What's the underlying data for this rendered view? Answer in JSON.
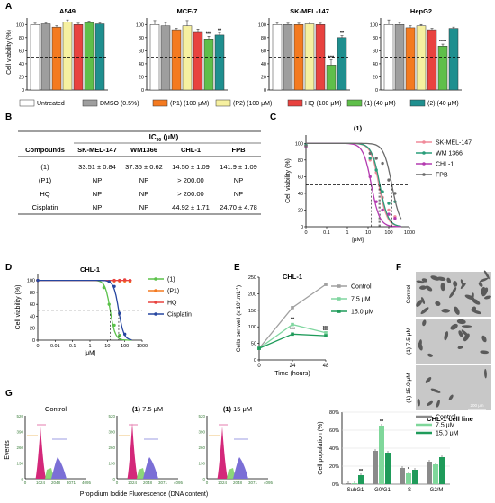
{
  "panel_letters": [
    "A",
    "B",
    "C",
    "D",
    "E",
    "F",
    "G"
  ],
  "colors": {
    "Untreated": "#ffffff",
    "DMSO": "#9e9e9e",
    "P1": "#f47a20",
    "P2": "#f6f0a0",
    "HQ": "#e8423f",
    "c1": "#5fbf4a",
    "c2": "#1f8f8f",
    "sk": "#f08a9a",
    "wm": "#2a9d7a",
    "chl": "#b43bb0",
    "fpb": "#6b6b6b",
    "d1": "#5bc24a",
    "dP1": "#f47a20",
    "dHQ": "#e8423f",
    "dCis": "#2746a0",
    "eControl": "#a0a0a0",
    "e75": "#80d6a0",
    "e15": "#1f9b5a",
    "g0": "#8a8a8a",
    "g1": "#7fd79a",
    "g2": "#1f9b5a"
  },
  "panelA": {
    "ylabel": "Cell viability (%)",
    "yticks": [
      "0",
      "20",
      "40",
      "60",
      "80",
      "100"
    ],
    "legend": [
      {
        "key": "Untreated",
        "label": "Untreated"
      },
      {
        "key": "DMSO",
        "label": "DMSO (0.5%)"
      },
      {
        "key": "P1",
        "label": "(P1) (100 μM)"
      },
      {
        "key": "P2",
        "label": "(P2) (100 μM)"
      },
      {
        "key": "HQ",
        "label": "HQ (100 μM)"
      },
      {
        "key": "c1",
        "label": "(1) (40 μM)"
      },
      {
        "key": "c2",
        "label": "(2) (40 μM)"
      }
    ],
    "chart_data": [
      {
        "type": "bar",
        "title": "A549",
        "categories": [
          "Untreated",
          "DMSO",
          "P1",
          "P2",
          "HQ",
          "1",
          "2"
        ],
        "values": [
          100,
          101,
          96,
          104,
          100,
          103,
          101
        ],
        "errors": [
          2,
          2,
          2,
          3,
          2,
          2,
          2
        ],
        "stars": [
          "",
          "",
          "",
          "",
          "",
          "",
          ""
        ],
        "ylim": [
          0,
          110
        ],
        "ref_line": 50
      },
      {
        "type": "bar",
        "title": "MCF-7",
        "categories": [
          "Untreated",
          "DMSO",
          "P1",
          "P2",
          "HQ",
          "1",
          "2"
        ],
        "values": [
          100,
          98,
          92,
          98,
          88,
          78,
          84
        ],
        "errors": [
          6,
          5,
          2,
          8,
          5,
          4,
          3
        ],
        "stars": [
          "",
          "",
          "",
          "",
          "",
          "***",
          "**"
        ],
        "ylim": [
          0,
          110
        ],
        "ref_line": 50
      },
      {
        "type": "bar",
        "title": "SK-MEL-147",
        "categories": [
          "Untreated",
          "DMSO",
          "P1",
          "P2",
          "HQ",
          "1",
          "2"
        ],
        "values": [
          100,
          100,
          100,
          101,
          100,
          38,
          80
        ],
        "errors": [
          3,
          2,
          2,
          3,
          2,
          8,
          3
        ],
        "stars": [
          "",
          "",
          "",
          "",
          "",
          "***",
          "**"
        ],
        "ylim": [
          0,
          110
        ],
        "ref_line": 50
      },
      {
        "type": "bar",
        "title": "HepG2",
        "categories": [
          "Untreated",
          "DMSO",
          "P1",
          "P2",
          "HQ",
          "1",
          "2"
        ],
        "values": [
          100,
          100,
          95,
          98,
          92,
          67,
          94
        ],
        "errors": [
          7,
          3,
          3,
          2,
          2,
          3,
          2
        ],
        "stars": [
          "",
          "",
          "",
          "",
          "",
          "****",
          ""
        ],
        "ylim": [
          0,
          110
        ],
        "ref_line": 50
      }
    ]
  },
  "panelB": {
    "header_group": "IC",
    "header_sub": "50",
    "header_unit": " (μM)",
    "columns": [
      "Compounds",
      "SK-MEL-147",
      "WM1366",
      "CHL-1",
      "FPB"
    ],
    "rows": [
      [
        "(1)",
        "33.51 ± 0.84",
        "37.35 ± 0.62",
        "14.50 ± 1.09",
        "141.9 ± 1.09"
      ],
      [
        "(P1)",
        "NP",
        "NP",
        "> 200.00",
        "NP"
      ],
      [
        "HQ",
        "NP",
        "NP",
        "> 200.00",
        "NP"
      ],
      [
        "Cisplatin",
        "NP",
        "NP",
        "44.92 ± 1.71",
        "24.70 ± 4.78"
      ]
    ]
  },
  "panelC": {
    "chart_data": {
      "type": "line",
      "title": "(1)",
      "xlabel": "[μM]",
      "ylabel": "Cell viability (%)",
      "xscale": "log",
      "xlim": [
        0.01,
        1000
      ],
      "ylim": [
        0,
        110
      ],
      "xticks": [
        "0",
        "0.1",
        "1",
        "10",
        "100",
        "1000"
      ],
      "yticks": [
        "0",
        "20",
        "40",
        "60",
        "80",
        "100"
      ],
      "ref_line": 50,
      "x": [
        0.01,
        12.5,
        25,
        50,
        100,
        200
      ],
      "series": [
        {
          "name": "SK-MEL-147",
          "key": "sk",
          "ic50": 33.51,
          "values": [
            97,
            80,
            65,
            35,
            20,
            12
          ]
        },
        {
          "name": "WM 1366",
          "key": "wm",
          "ic50": 37.35,
          "values": [
            98,
            82,
            68,
            42,
            28,
            30
          ]
        },
        {
          "name": "CHL-1",
          "key": "chl",
          "ic50": 14.5,
          "values": [
            96,
            60,
            30,
            20,
            15,
            10
          ]
        },
        {
          "name": "FPB",
          "key": "fpb",
          "ic50": 141.9,
          "values": [
            97,
            88,
            82,
            76,
            56,
            40
          ]
        }
      ]
    }
  },
  "panelD": {
    "chart_data": {
      "type": "line",
      "title": "CHL-1",
      "xlabel": "[μM]",
      "ylabel": "Cell viability (%)",
      "xscale": "log",
      "xlim": [
        0.001,
        1000
      ],
      "ylim": [
        0,
        110
      ],
      "xticks": [
        "0",
        "0.01",
        "0.1",
        "1",
        "10",
        "100",
        "1000"
      ],
      "yticks": [
        "0",
        "20",
        "40",
        "60",
        "80",
        "100"
      ],
      "ref_line": 50,
      "series": [
        {
          "name": "(1)",
          "key": "d1",
          "ic50": 14.5,
          "slope": 3,
          "x": [
            0.001,
            6.25,
            12.5,
            25,
            50
          ],
          "values": [
            100,
            88,
            60,
            25,
            8
          ]
        },
        {
          "name": "(P1)",
          "key": "dP1",
          "ic50": 0,
          "slope": 0,
          "x": [
            0.001,
            25,
            50,
            100,
            200
          ],
          "values": [
            100,
            99,
            99,
            99,
            98
          ]
        },
        {
          "name": "HQ",
          "key": "dHQ",
          "ic50": 0,
          "slope": 0,
          "x": [
            0.001,
            25,
            50,
            100,
            200
          ],
          "values": [
            100,
            100,
            100,
            101,
            100
          ]
        },
        {
          "name": "Cisplatin",
          "key": "dCis",
          "ic50": 44.92,
          "slope": 3,
          "x": [
            0.001,
            12.5,
            25,
            50,
            100
          ],
          "values": [
            100,
            98,
            90,
            45,
            10
          ]
        }
      ]
    }
  },
  "panelE": {
    "chart_data": {
      "type": "line",
      "title": "CHL-1",
      "xlabel": "Time (hours)",
      "ylabel_main": "Cells per well (x 10",
      "ylabel_sup": "4",
      "ylabel_mid": ".mL",
      "ylabel_sup2": "-1",
      "ylabel_end": ")",
      "xlim": [
        0,
        48
      ],
      "ylim": [
        0,
        250
      ],
      "xticks": [
        "0",
        "24",
        "48"
      ],
      "yticks": [
        "0",
        "50",
        "100",
        "150",
        "200",
        "250"
      ],
      "x": [
        0,
        24,
        48
      ],
      "series": [
        {
          "name": "Control",
          "key": "eControl",
          "values": [
            35,
            158,
            228
          ],
          "stars": [
            "",
            "",
            ""
          ]
        },
        {
          "name": "7.5 μM",
          "key": "e75",
          "values": [
            35,
            107,
            82
          ],
          "stars": [
            "",
            "**",
            "***"
          ]
        },
        {
          "name": "15.0 μM",
          "key": "e15",
          "values": [
            35,
            78,
            73
          ],
          "stars": [
            "",
            "***",
            "***"
          ]
        }
      ]
    }
  },
  "panelF": {
    "labels": [
      "Control",
      "(1) 7.5 μM",
      "(1) 15.0 μM"
    ],
    "caption": "CHL-1 cell line",
    "scale": "200 μm"
  },
  "panelG": {
    "histograms": [
      {
        "title": "Control",
        "bold": "",
        "rest": ""
      },
      {
        "title": "",
        "bold": "(1)",
        "rest": " 7.5 μM"
      },
      {
        "title": "",
        "bold": "(1)",
        "rest": " 15 μM"
      }
    ],
    "hist_ylabel": "Events",
    "hist_xlabel": "Propidium Iodide Fluorescence (DNA content)",
    "hist_yticks": [
      "0",
      "130",
      "260",
      "390",
      "520"
    ],
    "hist_xticks": [
      "0",
      "1024",
      "2048",
      "3071",
      "4095"
    ],
    "bar_chart": {
      "type": "bar",
      "ylabel": "Cell population (%)",
      "ylim": [
        0,
        80
      ],
      "yticks": [
        "0%",
        "20%",
        "40%",
        "60%",
        "80%"
      ],
      "categories": [
        "SubG1",
        "G0/G1",
        "S",
        "G2/M"
      ],
      "series": [
        {
          "name": "Control",
          "key": "g0",
          "values": [
            1,
            37,
            18,
            25
          ],
          "stars": [
            "",
            "",
            "",
            ""
          ]
        },
        {
          "name": "7.5 μM",
          "key": "g1",
          "values": [
            1,
            65,
            12,
            22
          ],
          "stars": [
            "",
            "**",
            "*",
            ""
          ]
        },
        {
          "name": "15.0 μM",
          "key": "g2",
          "values": [
            10,
            35,
            16,
            30
          ],
          "stars": [
            "**",
            "",
            "",
            ""
          ]
        }
      ]
    }
  }
}
